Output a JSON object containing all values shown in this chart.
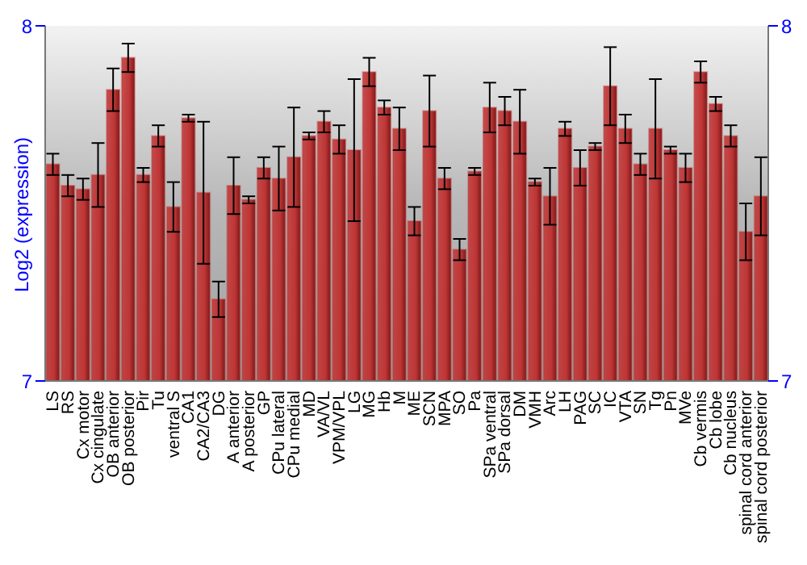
{
  "chart_data": {
    "type": "bar",
    "ylabel": "Log2 (expression)",
    "categories": [
      "LS",
      "RS",
      "Cx motor",
      "Cx cingulate",
      "OB anterior",
      "OB posterior",
      "Pir",
      "Tu",
      "ventral S",
      "CA1",
      "CA2/CA3",
      "DG",
      "A anterior",
      "A posterior",
      "GP",
      "CPu lateral",
      "CPu medial",
      "MD",
      "VA/VL",
      "VPM/VPL",
      "LG",
      "MG",
      "Hb",
      "M",
      "ME",
      "SCN",
      "MPA",
      "SO",
      "Pa",
      "SPa ventral",
      "SPa dorsal",
      "DM",
      "VMH",
      "Arc",
      "LH",
      "PAG",
      "SC",
      "IC",
      "VTA",
      "SN",
      "Tg",
      "Pn",
      "MVe",
      "Cb vermis",
      "Cb lobe",
      "Cb nucleus",
      "spinal cord anterior",
      "spinal cord posterior"
    ],
    "values": [
      7.61,
      7.55,
      7.54,
      7.58,
      7.82,
      7.91,
      7.58,
      7.69,
      7.49,
      7.74,
      7.53,
      7.23,
      7.55,
      7.51,
      7.6,
      7.57,
      7.63,
      7.69,
      7.73,
      7.68,
      7.65,
      7.87,
      7.77,
      7.71,
      7.45,
      7.76,
      7.57,
      7.37,
      7.59,
      7.77,
      7.76,
      7.73,
      7.56,
      7.52,
      7.71,
      7.6,
      7.66,
      7.83,
      7.71,
      7.61,
      7.71,
      7.65,
      7.6,
      7.87,
      7.78,
      7.69,
      7.42,
      7.52
    ],
    "errors": [
      0.03,
      0.03,
      0.03,
      0.09,
      0.06,
      0.04,
      0.02,
      0.03,
      0.07,
      0.01,
      0.2,
      0.05,
      0.08,
      0.01,
      0.03,
      0.09,
      0.14,
      0.01,
      0.03,
      0.04,
      0.2,
      0.04,
      0.02,
      0.06,
      0.04,
      0.1,
      0.03,
      0.03,
      0.01,
      0.07,
      0.04,
      0.09,
      0.01,
      0.08,
      0.02,
      0.05,
      0.01,
      0.11,
      0.04,
      0.03,
      0.14,
      0.01,
      0.04,
      0.03,
      0.02,
      0.03,
      0.08,
      0.11
    ],
    "color": "#c03535",
    "ylim": [
      7,
      8
    ],
    "yticks": [
      7,
      8
    ],
    "y2lim": [
      7,
      8
    ],
    "y2ticks": [
      7,
      8
    ]
  }
}
